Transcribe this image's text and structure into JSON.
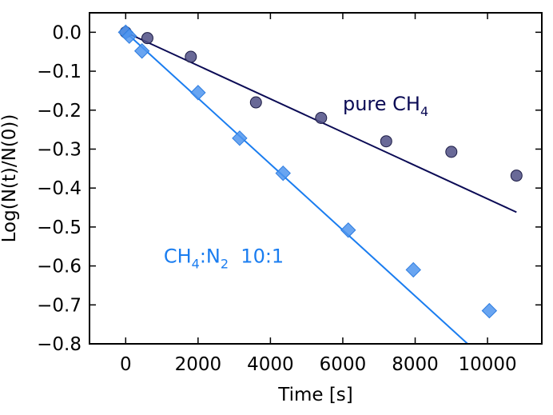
{
  "chart_data": {
    "type": "scatter",
    "xlabel": "Time [s]",
    "ylabel": "Log(N(t)/N(0))",
    "xlim": [
      -1000,
      11500
    ],
    "ylim": [
      -0.8,
      0.05
    ],
    "xticks": [
      0,
      2000,
      4000,
      6000,
      8000,
      10000
    ],
    "xtick_labels": [
      "0",
      "2000",
      "4000",
      "6000",
      "8000",
      "10000"
    ],
    "yticks": [
      0.0,
      -0.1,
      -0.2,
      -0.3,
      -0.4,
      -0.5,
      -0.6,
      -0.7,
      -0.8
    ],
    "ytick_labels": [
      "0.0",
      "−0.1",
      "−0.2",
      "−0.3",
      "−0.4",
      "−0.5",
      "−0.6",
      "−0.7",
      "−0.8"
    ],
    "series": [
      {
        "name": "pure CH4",
        "marker": "circle",
        "marker_color": "#4f4f85",
        "line_color": "#0b0b55",
        "x": [
          0,
          600,
          1800,
          3600,
          5400,
          7200,
          9000,
          10800
        ],
        "y": [
          0.0,
          -0.015,
          -0.063,
          -0.18,
          -0.22,
          -0.28,
          -0.307,
          -0.368
        ],
        "fit": {
          "x": [
            0,
            10800
          ],
          "y": [
            0.0,
            -0.462
          ]
        }
      },
      {
        "name": "CH4:N2 10:1",
        "marker": "diamond",
        "marker_color": "#4f95ee",
        "line_color": "#1a7df0",
        "x": [
          0,
          100,
          450,
          2000,
          3150,
          4350,
          6150,
          7950,
          10050
        ],
        "y": [
          0.0,
          -0.01,
          -0.048,
          -0.155,
          -0.272,
          -0.362,
          -0.508,
          -0.61,
          -0.715
        ],
        "fit": {
          "x": [
            0,
            9450
          ],
          "y": [
            0.0,
            -0.8
          ]
        }
      }
    ],
    "annotations": [
      {
        "id": "pure",
        "main": "pure CH",
        "sub": "4",
        "color": "#0b0b55",
        "x": 6000,
        "y": -0.2
      },
      {
        "id": "mix",
        "parts": [
          "CH",
          "4",
          ":N",
          "2",
          "  10:1"
        ],
        "color": "#1a7df0",
        "x": 1050,
        "y": -0.592
      }
    ]
  }
}
